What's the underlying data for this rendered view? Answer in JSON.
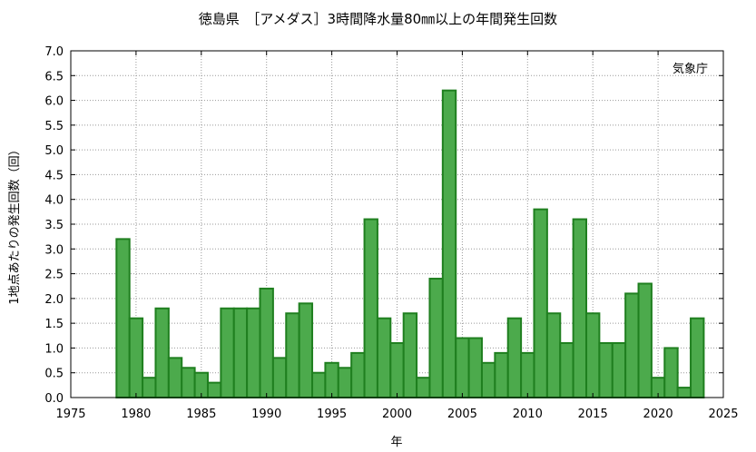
{
  "chart_data": {
    "type": "bar",
    "title": "徳島県　［アメダス］3時間降水量80㎜以上の年間発生回数",
    "xlabel": "年",
    "ylabel": "1地点あたりの発生回数（回）",
    "annotation": "気象庁",
    "xlim": [
      1975,
      2025
    ],
    "ylim": [
      0,
      7.0
    ],
    "x_ticks": [
      "1975",
      "1980",
      "1985",
      "1990",
      "1995",
      "2000",
      "2005",
      "2010",
      "2015",
      "2020",
      "2025"
    ],
    "y_ticks": [
      "0.0",
      "0.5",
      "1.0",
      "1.5",
      "2.0",
      "2.5",
      "3.0",
      "3.5",
      "4.0",
      "4.5",
      "5.0",
      "5.5",
      "6.0",
      "6.5",
      "7.0"
    ],
    "grid": true,
    "bar_color": "#4caa4c",
    "bar_edge_color": "#1f7f1f",
    "x": [
      1979,
      1980,
      1981,
      1982,
      1983,
      1984,
      1985,
      1986,
      1987,
      1988,
      1989,
      1990,
      1991,
      1992,
      1993,
      1994,
      1995,
      1996,
      1997,
      1998,
      1999,
      2000,
      2001,
      2002,
      2003,
      2004,
      2005,
      2006,
      2007,
      2008,
      2009,
      2010,
      2011,
      2012,
      2013,
      2014,
      2015,
      2016,
      2017,
      2018,
      2019,
      2020,
      2021,
      2022,
      2023
    ],
    "values": [
      3.2,
      1.6,
      0.4,
      1.8,
      0.8,
      0.6,
      0.5,
      0.3,
      1.8,
      1.8,
      1.8,
      2.2,
      0.8,
      1.7,
      1.9,
      0.5,
      0.7,
      0.6,
      0.9,
      3.6,
      1.6,
      1.1,
      1.7,
      0.4,
      2.4,
      6.2,
      1.2,
      1.2,
      0.7,
      0.9,
      1.6,
      0.9,
      3.8,
      1.7,
      1.1,
      3.6,
      1.7,
      1.1,
      1.1,
      2.1,
      2.3,
      0.4,
      1.0,
      0.2,
      1.6
    ]
  }
}
